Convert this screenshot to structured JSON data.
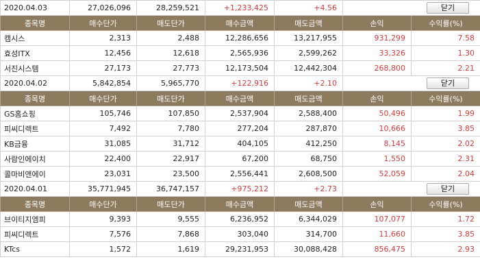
{
  "columns": [
    "종목명",
    "매수단가",
    "매도단가",
    "매수금액",
    "매도금액",
    "손익",
    "수익률(%)"
  ],
  "close_label": "닫기",
  "groups": [
    {
      "summary": [
        "2020.04.03",
        "27,026,096",
        "28,259,521",
        "+1,233,425",
        "+4.56"
      ],
      "rows": [
        [
          "캠시스",
          "2,313",
          "2,488",
          "12,286,656",
          "13,217,955",
          "931,299",
          "7.58"
        ],
        [
          "효성ITX",
          "12,456",
          "12,618",
          "2,565,936",
          "2,599,262",
          "33,326",
          "1.30"
        ],
        [
          "서진시스템",
          "27,173",
          "27,773",
          "12,173,504",
          "12,442,304",
          "268,800",
          "2.21"
        ]
      ]
    },
    {
      "summary": [
        "2020.04.02",
        "5,842,854",
        "5,965,770",
        "+122,916",
        "+2.10"
      ],
      "rows": [
        [
          "GS홈쇼핑",
          "105,746",
          "107,850",
          "2,537,904",
          "2,588,400",
          "50,496",
          "1.99"
        ],
        [
          "피씨디렉트",
          "7,492",
          "7,780",
          "277,204",
          "287,870",
          "10,666",
          "3.85"
        ],
        [
          "KB금융",
          "31,085",
          "31,712",
          "404,105",
          "412,250",
          "8,145",
          "2.02"
        ],
        [
          "사람인에이치",
          "22,400",
          "22,917",
          "67,200",
          "68,750",
          "1,550",
          "2.31"
        ],
        [
          "콜마비앤에이",
          "23,031",
          "23,500",
          "2,556,441",
          "2,608,500",
          "52,059",
          "2.04"
        ]
      ]
    },
    {
      "summary": [
        "2020.04.01",
        "35,771,945",
        "36,747,157",
        "+975,212",
        "+2.73"
      ],
      "rows": [
        [
          "브이티지엠피",
          "9,393",
          "9,555",
          "6,236,952",
          "6,344,029",
          "107,077",
          "1.72"
        ],
        [
          "피씨디렉트",
          "7,576",
          "7,868",
          "303,040",
          "314,700",
          "11,660",
          "3.85"
        ],
        [
          "KTcs",
          "1,572",
          "1,619",
          "29,231,953",
          "30,088,428",
          "856,475",
          "2.93"
        ]
      ]
    }
  ],
  "colors": {
    "header_bg": "#8e7a5f",
    "positive": "#d63a3a",
    "border": "#d2d2d2"
  }
}
